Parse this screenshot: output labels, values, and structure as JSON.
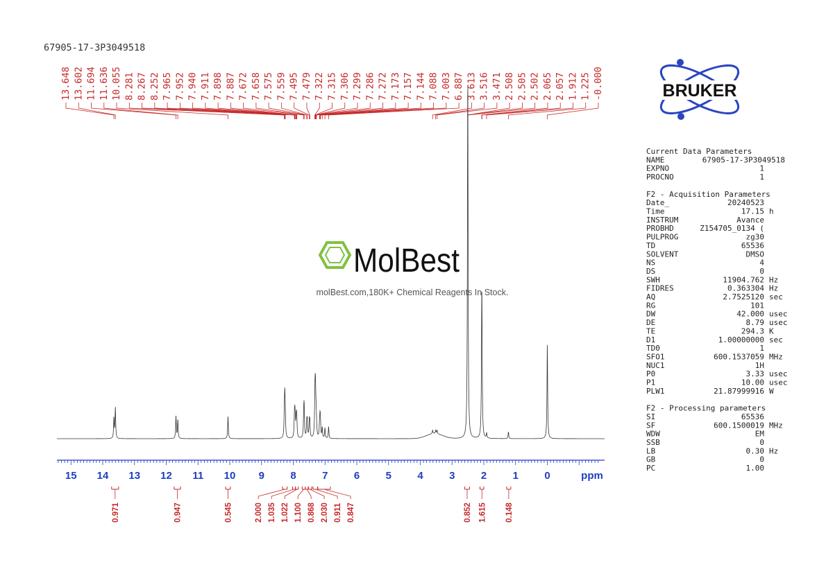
{
  "sample_name": "67905-17-3P3049518",
  "watermark": {
    "brand": "MolBest",
    "tagline": "molBest.com,180K+ Chemical Reagents In Stock."
  },
  "logo": {
    "text": "BRUKER"
  },
  "params": {
    "current": [
      {
        "key": "Current Data Parameters",
        "value": ""
      },
      {
        "key": "NAME",
        "value": "67905-17-3P3049518"
      },
      {
        "key": "EXPNO",
        "value": "1"
      },
      {
        "key": "PROCNO",
        "value": "1"
      }
    ],
    "acq_title": "F2 - Acquisition Parameters",
    "acq": [
      {
        "key": "Date_",
        "value": "20240523"
      },
      {
        "key": "Time",
        "value": "17.15 h"
      },
      {
        "key": "INSTRUM",
        "value": "Avance"
      },
      {
        "key": "PROBHD",
        "value": "Z154705_0134 ("
      },
      {
        "key": "PULPROG",
        "value": "zg30"
      },
      {
        "key": "TD",
        "value": "65536"
      },
      {
        "key": "SOLVENT",
        "value": "DMSO"
      },
      {
        "key": "NS",
        "value": "4"
      },
      {
        "key": "DS",
        "value": "0"
      },
      {
        "key": "SWH",
        "value": "11904.762 Hz"
      },
      {
        "key": "FIDRES",
        "value": "0.363304 Hz"
      },
      {
        "key": "AQ",
        "value": "2.7525120 sec"
      },
      {
        "key": "RG",
        "value": "101"
      },
      {
        "key": "DW",
        "value": "42.000 usec"
      },
      {
        "key": "DE",
        "value": "8.79 usec"
      },
      {
        "key": "TE",
        "value": "294.3 K"
      },
      {
        "key": "D1",
        "value": "1.00000000 sec"
      },
      {
        "key": "TD0",
        "value": "1"
      },
      {
        "key": "SFO1",
        "value": "600.1537059 MHz"
      },
      {
        "key": "NUC1",
        "value": "1H"
      },
      {
        "key": "P0",
        "value": "3.33 usec"
      },
      {
        "key": "P1",
        "value": "10.00 usec"
      },
      {
        "key": "PLW1",
        "value": "21.87999916 W"
      }
    ],
    "proc_title": "F2 - Processing parameters",
    "proc": [
      {
        "key": "SI",
        "value": "65536"
      },
      {
        "key": "SF",
        "value": "600.1500019 MHz"
      },
      {
        "key": "WDW",
        "value": "EM"
      },
      {
        "key": "SSB",
        "value": "0"
      },
      {
        "key": "LB",
        "value": "0.30 Hz"
      },
      {
        "key": "GB",
        "value": "0"
      },
      {
        "key": "PC",
        "value": "1.00"
      }
    ]
  },
  "chart_data": {
    "type": "line",
    "xlabel": "ppm",
    "x_reversed": true,
    "xlim": [
      15.4,
      -1.8
    ],
    "xticks": [
      "15",
      "14",
      "13",
      "12",
      "11",
      "10",
      "9",
      "8",
      "7",
      "6",
      "5",
      "4",
      "3",
      "2",
      "1",
      "0"
    ],
    "peak_labels": [
      "13.648",
      "13.602",
      "11.694",
      "11.636",
      "10.055",
      "8.281",
      "8.267",
      "8.252",
      "7.965",
      "7.952",
      "7.940",
      "7.911",
      "7.898",
      "7.887",
      "7.672",
      "7.658",
      "7.575",
      "7.559",
      "7.495",
      "7.479",
      "7.322",
      "7.315",
      "7.306",
      "7.299",
      "7.286",
      "7.272",
      "7.173",
      "7.157",
      "7.144",
      "7.088",
      "7.003",
      "6.887",
      "3.613",
      "3.516",
      "3.471",
      "2.508",
      "2.505",
      "2.502",
      "2.065",
      "2.057",
      "1.912",
      "1.225",
      "-0.000"
    ],
    "peaks": [
      {
        "ppm": 13.648,
        "height": 0.12
      },
      {
        "ppm": 13.602,
        "height": 0.18
      },
      {
        "ppm": 11.694,
        "height": 0.13
      },
      {
        "ppm": 11.636,
        "height": 0.11
      },
      {
        "ppm": 10.055,
        "height": 0.13
      },
      {
        "ppm": 8.281,
        "height": 0.11
      },
      {
        "ppm": 8.267,
        "height": 0.21
      },
      {
        "ppm": 8.252,
        "height": 0.11
      },
      {
        "ppm": 7.965,
        "height": 0.09
      },
      {
        "ppm": 7.952,
        "height": 0.11
      },
      {
        "ppm": 7.94,
        "height": 0.07
      },
      {
        "ppm": 7.911,
        "height": 0.07
      },
      {
        "ppm": 7.898,
        "height": 0.09
      },
      {
        "ppm": 7.887,
        "height": 0.06
      },
      {
        "ppm": 7.672,
        "height": 0.11
      },
      {
        "ppm": 7.658,
        "height": 0.17
      },
      {
        "ppm": 7.575,
        "height": 0.08
      },
      {
        "ppm": 7.559,
        "height": 0.09
      },
      {
        "ppm": 7.495,
        "height": 0.09
      },
      {
        "ppm": 7.479,
        "height": 0.08
      },
      {
        "ppm": 7.322,
        "height": 0.1
      },
      {
        "ppm": 7.315,
        "height": 0.13
      },
      {
        "ppm": 7.306,
        "height": 0.14
      },
      {
        "ppm": 7.299,
        "height": 0.12
      },
      {
        "ppm": 7.286,
        "height": 0.09
      },
      {
        "ppm": 7.272,
        "height": 0.07
      },
      {
        "ppm": 7.173,
        "height": 0.07
      },
      {
        "ppm": 7.157,
        "height": 0.1
      },
      {
        "ppm": 7.144,
        "height": 0.07
      },
      {
        "ppm": 7.088,
        "height": 0.06
      },
      {
        "ppm": 7.003,
        "height": 0.06
      },
      {
        "ppm": 6.887,
        "height": 0.07
      },
      {
        "ppm": 3.613,
        "height": 0.02
      },
      {
        "ppm": 3.516,
        "height": 0.02
      },
      {
        "ppm": 3.471,
        "height": 0.02
      },
      {
        "ppm": 2.508,
        "height": 0.6
      },
      {
        "ppm": 2.505,
        "height": 1.0
      },
      {
        "ppm": 2.502,
        "height": 0.6
      },
      {
        "ppm": 2.065,
        "height": 0.62
      },
      {
        "ppm": 2.057,
        "height": 0.35
      },
      {
        "ppm": 1.912,
        "height": 0.03
      },
      {
        "ppm": 1.225,
        "height": 0.04
      },
      {
        "ppm": 0.0,
        "height": 0.55
      }
    ],
    "broad_peaks": [
      {
        "ppm": 3.55,
        "height": 0.03,
        "width": 0.25
      }
    ],
    "integrals": [
      {
        "start": 13.72,
        "end": 13.5,
        "value": "0.971"
      },
      {
        "start": 11.75,
        "end": 11.55,
        "value": "0.947"
      },
      {
        "start": 10.13,
        "end": 9.98,
        "value": "0.545"
      },
      {
        "start": 8.34,
        "end": 8.19,
        "value": "2.000"
      },
      {
        "start": 8.02,
        "end": 7.93,
        "value": "1.035"
      },
      {
        "start": 7.93,
        "end": 7.84,
        "value": "1.022"
      },
      {
        "start": 7.72,
        "end": 7.62,
        "value": "1.100"
      },
      {
        "start": 7.62,
        "end": 7.52,
        "value": "0.868"
      },
      {
        "start": 7.53,
        "end": 7.42,
        "value": "2.030"
      },
      {
        "start": 7.38,
        "end": 7.23,
        "value": "0.911"
      },
      {
        "start": 7.23,
        "end": 6.83,
        "value": "0.847"
      },
      {
        "start": 2.6,
        "end": 2.45,
        "value": "0.852"
      },
      {
        "start": 2.12,
        "end": 2.0,
        "value": "1.615"
      },
      {
        "start": 1.28,
        "end": 1.15,
        "value": "0.148"
      }
    ]
  }
}
